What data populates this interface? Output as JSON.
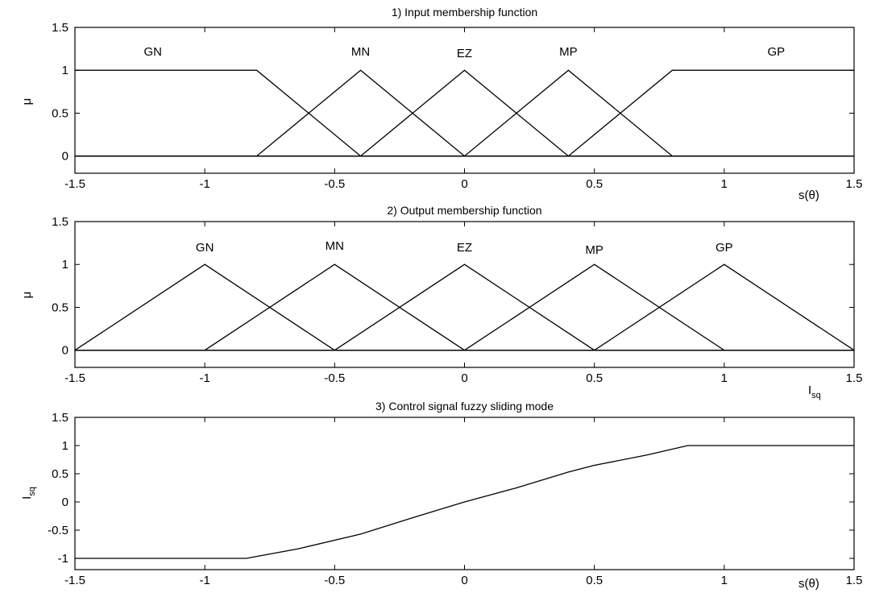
{
  "chart_data": [
    {
      "type": "line",
      "title": "1) Input membership function",
      "ylabel": "μ",
      "xlabel": "s(θ)",
      "xlim": [
        -1.5,
        1.5
      ],
      "ylim": [
        -0.2,
        1.5
      ],
      "xticks": [
        -1.5,
        -1,
        -0.5,
        0,
        0.5,
        1,
        1.5
      ],
      "xtick_labels": [
        "-1.5",
        "-1",
        "-0.5",
        "0",
        "0.5",
        "1",
        "1.5"
      ],
      "yticks": [
        0,
        0.5,
        1,
        1.5
      ],
      "ytick_labels": [
        "0",
        "0.5",
        "1",
        "1.5"
      ],
      "grid": false,
      "series": [
        {
          "name": "GN",
          "label_pos": [
            -1.2,
            1.22
          ],
          "points": [
            [
              -1.5,
              1
            ],
            [
              -0.8,
              1
            ],
            [
              -0.4,
              0
            ],
            [
              1.5,
              0
            ]
          ]
        },
        {
          "name": "MN",
          "label_pos": [
            -0.4,
            1.22
          ],
          "points": [
            [
              -1.5,
              0
            ],
            [
              -0.8,
              0
            ],
            [
              -0.4,
              1
            ],
            [
              0,
              0
            ],
            [
              1.5,
              0
            ]
          ]
        },
        {
          "name": "EZ",
          "label_pos": [
            0,
            1.2
          ],
          "points": [
            [
              -1.5,
              0
            ],
            [
              -0.4,
              0
            ],
            [
              0,
              1
            ],
            [
              0.4,
              0
            ],
            [
              1.5,
              0
            ]
          ]
        },
        {
          "name": "MP",
          "label_pos": [
            0.4,
            1.22
          ],
          "points": [
            [
              -1.5,
              0
            ],
            [
              0,
              0
            ],
            [
              0.4,
              1
            ],
            [
              0.8,
              0
            ],
            [
              1.5,
              0
            ]
          ]
        },
        {
          "name": "GP",
          "label_pos": [
            1.2,
            1.22
          ],
          "points": [
            [
              -1.5,
              0
            ],
            [
              0.4,
              0
            ],
            [
              0.8,
              1
            ],
            [
              1.5,
              1
            ]
          ]
        }
      ]
    },
    {
      "type": "line",
      "title": "2) Output membership function",
      "ylabel": "μ",
      "xlabel": "I",
      "xlabel_sub": "sq",
      "xlim": [
        -1.5,
        1.5
      ],
      "ylim": [
        -0.2,
        1.5
      ],
      "xticks": [
        -1.5,
        -1,
        -0.5,
        0,
        0.5,
        1,
        1.5
      ],
      "xtick_labels": [
        "-1.5",
        "-1",
        "-0.5",
        "0",
        "0.5",
        "1",
        "1.5"
      ],
      "yticks": [
        0,
        0.5,
        1,
        1.5
      ],
      "ytick_labels": [
        "0",
        "0.5",
        "1",
        "1.5"
      ],
      "grid": false,
      "series": [
        {
          "name": "GN",
          "label_pos": [
            -1,
            1.2
          ],
          "points": [
            [
              -1.5,
              0
            ],
            [
              -1,
              1
            ],
            [
              -0.5,
              0
            ],
            [
              1.5,
              0
            ]
          ]
        },
        {
          "name": "MN",
          "label_pos": [
            -0.5,
            1.22
          ],
          "points": [
            [
              -1.5,
              0
            ],
            [
              -1,
              0
            ],
            [
              -0.5,
              1
            ],
            [
              0,
              0
            ],
            [
              1.5,
              0
            ]
          ]
        },
        {
          "name": "EZ",
          "label_pos": [
            0,
            1.2
          ],
          "points": [
            [
              -1.5,
              0
            ],
            [
              -0.5,
              0
            ],
            [
              0,
              1
            ],
            [
              0.5,
              0
            ],
            [
              1.5,
              0
            ]
          ]
        },
        {
          "name": "MP",
          "label_pos": [
            0.5,
            1.17
          ],
          "points": [
            [
              -1.5,
              0
            ],
            [
              0,
              0
            ],
            [
              0.5,
              1
            ],
            [
              1,
              0
            ],
            [
              1.5,
              0
            ]
          ]
        },
        {
          "name": "GP",
          "label_pos": [
            1,
            1.2
          ],
          "points": [
            [
              -1.5,
              0
            ],
            [
              0.5,
              0
            ],
            [
              1,
              1
            ],
            [
              1.5,
              0
            ]
          ]
        }
      ]
    },
    {
      "type": "line",
      "title": "3) Control signal fuzzy sliding mode",
      "ylabel": "I",
      "ylabel_sub": "sq",
      "xlabel": "s(θ)",
      "xlim": [
        -1.5,
        1.5
      ],
      "ylim": [
        -1.2,
        1.5
      ],
      "xticks": [
        -1.5,
        -1,
        -0.5,
        0,
        0.5,
        1,
        1.5
      ],
      "xtick_labels": [
        "-1.5",
        "-1",
        "-0.5",
        "0",
        "0.5",
        "1",
        "1.5"
      ],
      "yticks": [
        -1,
        -0.5,
        0,
        0.5,
        1,
        1.5
      ],
      "ytick_labels": [
        "-1",
        "-0.5",
        "0",
        "0.5",
        "1",
        "1.5"
      ],
      "grid": false,
      "series": [
        {
          "points": [
            [
              -1.5,
              -1
            ],
            [
              -0.84,
              -1
            ],
            [
              -0.64,
              -0.83
            ],
            [
              -0.4,
              -0.57
            ],
            [
              -0.2,
              -0.28
            ],
            [
              0,
              0
            ],
            [
              0.2,
              0.25
            ],
            [
              0.4,
              0.53
            ],
            [
              0.5,
              0.65
            ],
            [
              0.7,
              0.83
            ],
            [
              0.86,
              1
            ],
            [
              1.5,
              1
            ]
          ]
        }
      ]
    }
  ]
}
